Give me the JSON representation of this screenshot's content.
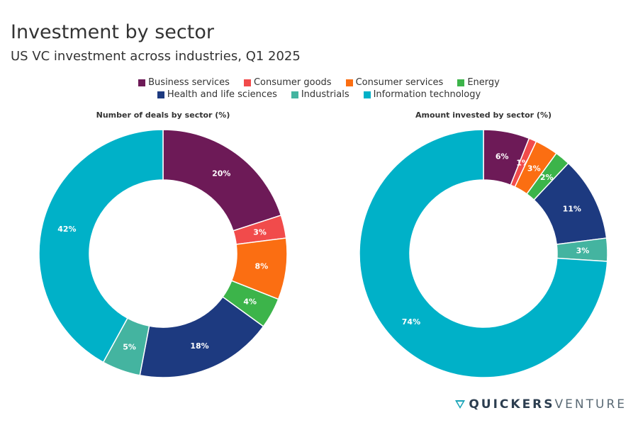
{
  "header": {
    "title": "Investment by sector",
    "subtitle": "US VC investment across industries, Q1 2025"
  },
  "chart_data": [
    {
      "type": "pie",
      "donut": true,
      "title": "Number of deals by sector (%)",
      "categories": [
        "Business services",
        "Consumer goods",
        "Consumer services",
        "Energy",
        "Health and life sciences",
        "Industrials",
        "Information technology"
      ],
      "values": [
        20,
        3,
        8,
        4,
        18,
        5,
        42
      ],
      "labels": [
        "20%",
        "3%",
        "8%",
        "4%",
        "18%",
        "5%",
        "42%"
      ]
    },
    {
      "type": "pie",
      "donut": true,
      "title": "Amount invested by sector (%)",
      "categories": [
        "Business services",
        "Consumer goods",
        "Consumer services",
        "Energy",
        "Health and life sciences",
        "Industrials",
        "Information technology"
      ],
      "values": [
        6,
        1,
        3,
        2,
        11,
        3,
        74
      ],
      "labels": [
        "6%",
        "1%",
        "3%",
        "2%",
        "11%",
        "3%",
        "74%"
      ]
    }
  ],
  "legend": [
    {
      "label": "Business services",
      "color": "#6d1a57"
    },
    {
      "label": "Consumer goods",
      "color": "#f14b4b"
    },
    {
      "label": "Consumer services",
      "color": "#fb6e12"
    },
    {
      "label": "Energy",
      "color": "#3cb44a"
    },
    {
      "label": "Health and life sciences",
      "color": "#1d3a80"
    },
    {
      "label": "Industrials",
      "color": "#44b4a0"
    },
    {
      "label": "Information technology",
      "color": "#00b1c8"
    }
  ],
  "brand": {
    "part1": "QUICKERS",
    "part2": "VENTURE",
    "icon": "quickers-logo-icon"
  }
}
